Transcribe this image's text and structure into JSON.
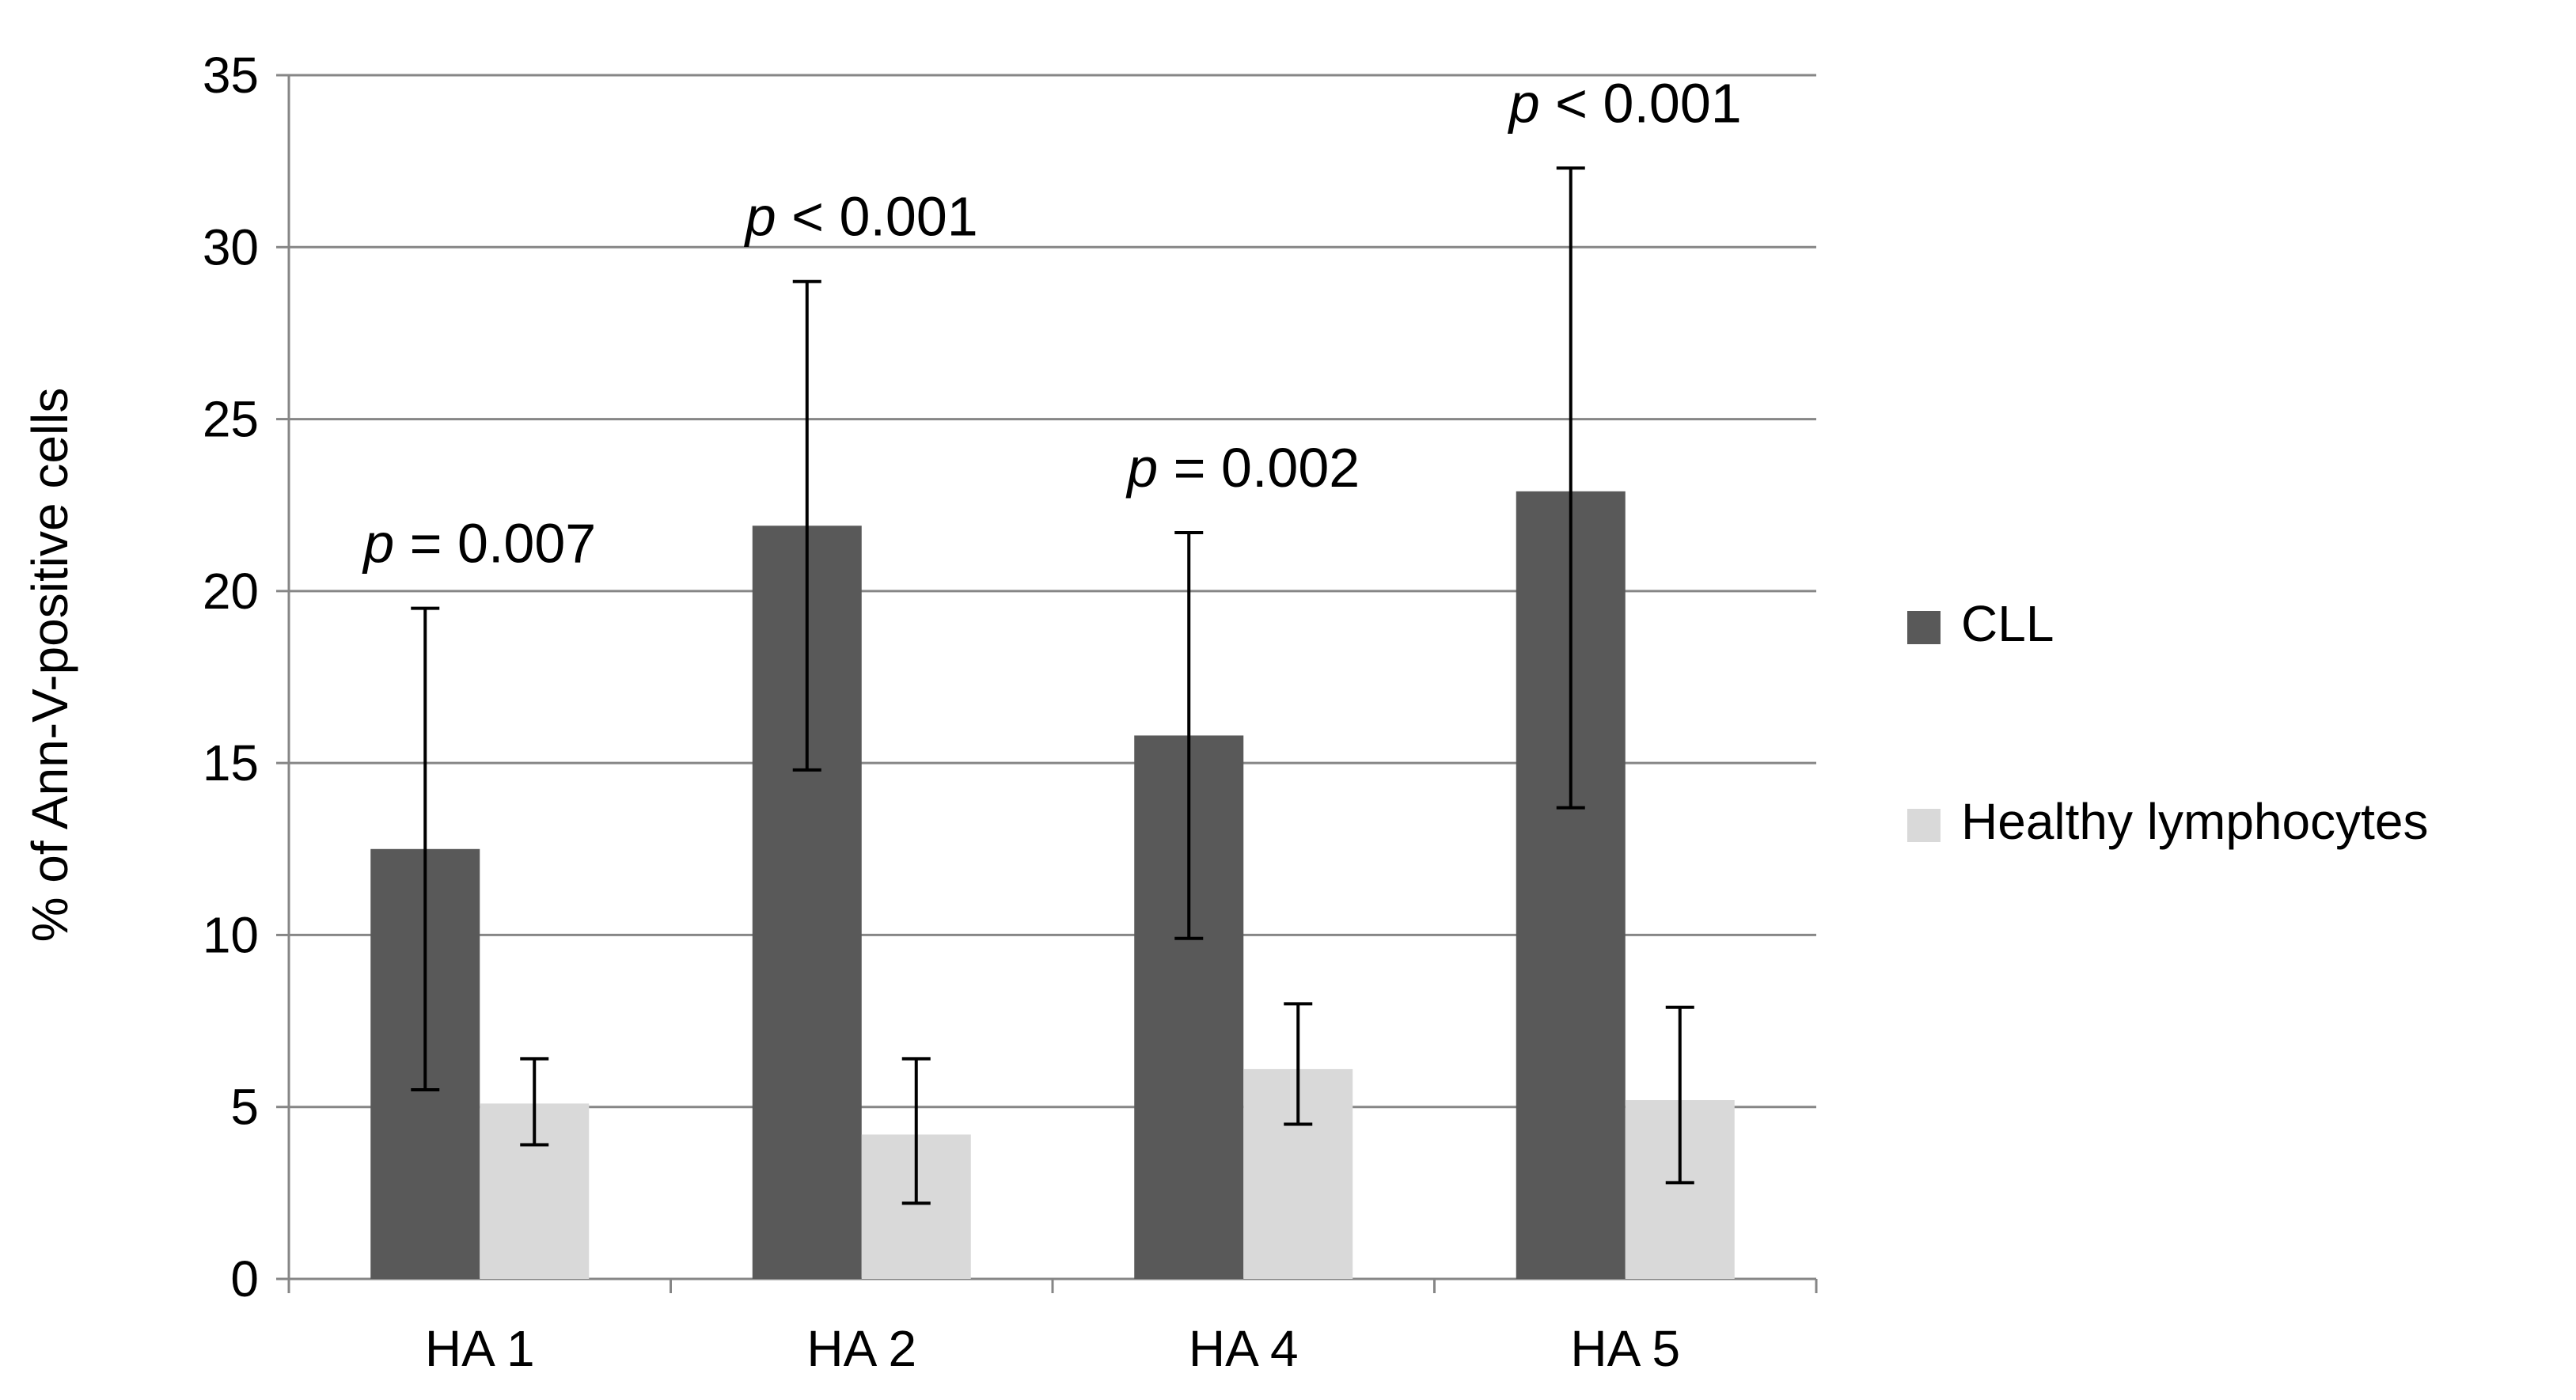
{
  "chart_data": {
    "type": "bar",
    "ylabel": "% of Ann-V-positive  cells",
    "ylim": [
      0,
      35
    ],
    "yticks": [
      0,
      5,
      10,
      15,
      20,
      25,
      30,
      35
    ],
    "grid": true,
    "legend_position": "right",
    "categories": [
      "HA 1",
      "HA 2",
      "HA 4",
      "HA 5"
    ],
    "series": [
      {
        "name": "CLL",
        "color": "#595959",
        "values": [
          12.5,
          21.9,
          15.8,
          22.9
        ],
        "error_low": [
          5.5,
          14.8,
          9.9,
          13.7
        ],
        "error_high": [
          19.5,
          29.0,
          21.7,
          32.3
        ]
      },
      {
        "name": "Healthy lymphocytes",
        "color": "#d9d9d9",
        "values": [
          5.1,
          4.2,
          6.1,
          5.2
        ],
        "error_low": [
          3.9,
          2.2,
          4.5,
          2.8
        ],
        "error_high": [
          6.4,
          6.4,
          8.0,
          7.9
        ]
      }
    ],
    "annotations": [
      {
        "category": "HA 1",
        "italic": "p",
        "text": " = 0.007"
      },
      {
        "category": "HA 2",
        "italic": "p",
        "text": " < 0.001"
      },
      {
        "category": "HA 4",
        "italic": "p",
        "text": " = 0.002"
      },
      {
        "category": "HA 5",
        "italic": "p",
        "text": " < 0.001"
      }
    ]
  }
}
